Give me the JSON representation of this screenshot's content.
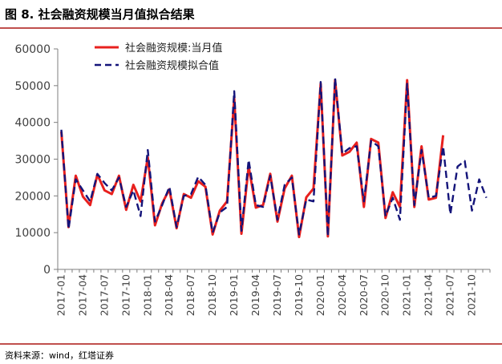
{
  "header": {
    "title": "图 8. 社会融资规模当月值拟合结果"
  },
  "footer": {
    "source": "资料来源：wind，红塔证券"
  },
  "chart_data": {
    "type": "line",
    "x": [
      "2017-01",
      "2017-02",
      "2017-03",
      "2017-04",
      "2017-05",
      "2017-06",
      "2017-07",
      "2017-08",
      "2017-09",
      "2017-10",
      "2017-11",
      "2017-12",
      "2018-01",
      "2018-02",
      "2018-03",
      "2018-04",
      "2018-05",
      "2018-06",
      "2018-07",
      "2018-08",
      "2018-09",
      "2018-10",
      "2018-11",
      "2018-12",
      "2019-01",
      "2019-02",
      "2019-03",
      "2019-04",
      "2019-05",
      "2019-06",
      "2019-07",
      "2019-08",
      "2019-09",
      "2019-10",
      "2019-11",
      "2019-12",
      "2020-01",
      "2020-02",
      "2020-03",
      "2020-04",
      "2020-05",
      "2020-06",
      "2020-07",
      "2020-08",
      "2020-09",
      "2020-10",
      "2020-11",
      "2020-12",
      "2021-01",
      "2021-02",
      "2021-03",
      "2021-04",
      "2021-05",
      "2021-06",
      "2021-07",
      "2021-08",
      "2021-09",
      "2021-10",
      "2021-11",
      "2021-12"
    ],
    "xticks": [
      "2017-01",
      "2017-04",
      "2017-07",
      "2017-10",
      "2018-01",
      "2018-04",
      "2018-07",
      "2018-10",
      "2019-01",
      "2019-04",
      "2019-07",
      "2019-10",
      "2020-01",
      "2020-04",
      "2020-07",
      "2020-10",
      "2021-01",
      "2021-04",
      "2021-07",
      "2021-10"
    ],
    "ylim": [
      0,
      60000
    ],
    "yticks": [
      0,
      10000,
      20000,
      30000,
      40000,
      50000,
      60000
    ],
    "series": [
      {
        "name": "社会融资规模:当月值",
        "color": "#e8201e",
        "style": "solid",
        "values": [
          37500,
          11500,
          25500,
          19800,
          17500,
          25800,
          21500,
          20500,
          25500,
          16200,
          23000,
          18500,
          30500,
          12000,
          18000,
          21800,
          11200,
          20500,
          19500,
          24000,
          22500,
          9500,
          16000,
          18500,
          46500,
          9700,
          28000,
          16800,
          17500,
          26000,
          13000,
          22000,
          25500,
          8800,
          19600,
          22000,
          50500,
          9000,
          51500,
          31000,
          32000,
          34500,
          17000,
          35500,
          34500,
          14000,
          21000,
          17000,
          51500,
          17000,
          33500,
          19000,
          19500,
          36500,
          null,
          null,
          null,
          null,
          null,
          null
        ]
      },
      {
        "name": "社会融资规模拟合值",
        "color": "#14147a",
        "style": "dashed",
        "values": [
          38000,
          11000,
          24500,
          21500,
          18500,
          26000,
          23500,
          21500,
          25000,
          17000,
          21500,
          14500,
          32500,
          13000,
          17500,
          22500,
          11500,
          20000,
          20500,
          25200,
          23000,
          10000,
          15500,
          17000,
          48500,
          10500,
          29800,
          17500,
          17000,
          25500,
          13500,
          23000,
          25000,
          9500,
          19000,
          18500,
          51000,
          9000,
          52000,
          31500,
          33000,
          33500,
          18500,
          35000,
          33500,
          14500,
          19500,
          13500,
          50500,
          17500,
          32500,
          19500,
          20000,
          33500,
          15000,
          28000,
          29500,
          16000,
          24500,
          19500
        ]
      }
    ]
  }
}
